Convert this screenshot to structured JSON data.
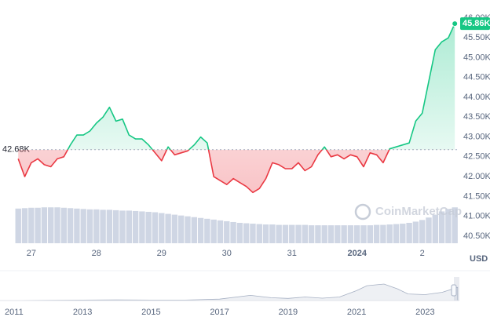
{
  "chart_data": [
    {
      "type": "line",
      "unit": "USD",
      "x": [
        26.8,
        26.9,
        27.0,
        27.1,
        27.2,
        27.3,
        27.4,
        27.5,
        27.6,
        27.7,
        27.8,
        27.9,
        28.0,
        28.1,
        28.2,
        28.3,
        28.4,
        28.5,
        28.6,
        28.7,
        28.8,
        28.9,
        29.0,
        29.1,
        29.2,
        29.3,
        29.4,
        29.5,
        29.6,
        29.7,
        29.8,
        29.9,
        30.0,
        30.1,
        30.2,
        30.3,
        30.4,
        30.5,
        30.6,
        30.7,
        30.8,
        30.9,
        31.0,
        31.1,
        31.2,
        31.3,
        31.4,
        31.5,
        31.6,
        31.7,
        31.8,
        31.9,
        32.0,
        32.1,
        32.2,
        32.3,
        32.4,
        32.5,
        32.6,
        32.7,
        32.8,
        32.9,
        33.0,
        33.1,
        33.2,
        33.3,
        33.4,
        33.5
      ],
      "values": [
        42450,
        42000,
        42350,
        42450,
        42300,
        42250,
        42450,
        42500,
        42800,
        43050,
        43050,
        43150,
        43350,
        43500,
        43750,
        43400,
        43450,
        43050,
        42950,
        42950,
        42800,
        42600,
        42400,
        42750,
        42550,
        42600,
        42650,
        42800,
        43000,
        42850,
        42000,
        41900,
        41800,
        41950,
        41850,
        41750,
        41600,
        41700,
        41950,
        42350,
        42300,
        42200,
        42200,
        42350,
        42150,
        42250,
        42550,
        42750,
        42500,
        42550,
        42450,
        42550,
        42500,
        42250,
        42600,
        42550,
        42350,
        42700,
        42750,
        42800,
        42850,
        43400,
        43600,
        44400,
        45200,
        45400,
        45500,
        45860
      ],
      "volume": [
        85,
        86,
        87,
        87,
        88,
        88,
        88,
        87,
        86,
        85,
        84,
        83,
        83,
        82,
        82,
        81,
        80,
        80,
        79,
        78,
        77,
        76,
        74,
        72,
        70,
        68,
        66,
        64,
        62,
        60,
        58,
        56,
        54,
        52,
        50,
        49,
        48,
        47,
        46,
        46,
        45,
        45,
        45,
        45,
        45,
        44,
        44,
        44,
        44,
        44,
        44,
        44,
        44,
        44,
        44,
        45,
        45,
        46,
        47,
        48,
        50,
        53,
        57,
        63,
        70,
        78,
        84,
        88
      ],
      "volume_lim": [
        0,
        100
      ],
      "baseline": {
        "value": 42680,
        "label": "42.68K"
      },
      "current": {
        "value": 45860,
        "label": "45.86K"
      },
      "up_color": "#16c784",
      "down_color": "#ea3943",
      "volume_color": "#cfd6e4",
      "watermark": "CoinMarketCap",
      "xlim": [
        26.52,
        33.57
      ],
      "xticks": [
        27,
        28,
        29,
        30,
        31,
        {
          "value": 32,
          "label": "2024"
        },
        {
          "value": 33,
          "label": "2"
        }
      ],
      "ylim": [
        40300,
        46000
      ],
      "yticks": [
        {
          "value": 46000,
          "label": "46.00K"
        },
        {
          "value": 45500,
          "label": "45.50K"
        },
        {
          "value": 45000,
          "label": "45.00K"
        },
        {
          "value": 44500,
          "label": "44.50K"
        },
        {
          "value": 44000,
          "label": "44.00K"
        },
        {
          "value": 43500,
          "label": "43.50K"
        },
        {
          "value": 43000,
          "label": "43.00K"
        },
        {
          "value": 42500,
          "label": "42.50K"
        },
        {
          "value": 42000,
          "label": "42.00K"
        },
        {
          "value": 41500,
          "label": "41.50K"
        },
        {
          "value": 41000,
          "label": "41.00K"
        },
        {
          "value": 40500,
          "label": "40.50K"
        }
      ],
      "grid": false
    },
    {
      "type": "area",
      "x": [
        2010.8,
        2012,
        2013,
        2014,
        2015,
        2016,
        2017,
        2017.9,
        2018.5,
        2019,
        2019.5,
        2020,
        2020.5,
        2021,
        2021.3,
        2021.8,
        2022.2,
        2022.5,
        2023,
        2023.5,
        2023.95
      ],
      "values": [
        0,
        1,
        2,
        3,
        2,
        2,
        6,
        22,
        12,
        9,
        15,
        10,
        15,
        42,
        63,
        70,
        49,
        28,
        25,
        35,
        56
      ],
      "color": "#a6b0c3",
      "xlim": [
        2010.59,
        2024.0
      ],
      "ylim": [
        0,
        100
      ],
      "xticks": [
        2011,
        2013,
        2015,
        2017,
        2019,
        2021,
        2023
      ]
    }
  ]
}
